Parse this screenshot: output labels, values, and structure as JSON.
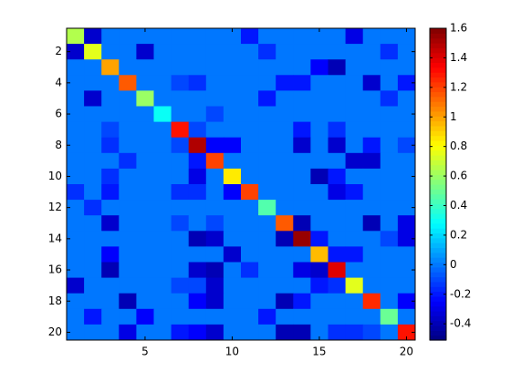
{
  "chart_data": {
    "type": "heatmap",
    "colormap": "jet",
    "xlim": [
      0.5,
      20.5
    ],
    "ylim": [
      0.5,
      20.5
    ],
    "xticks": [
      5,
      10,
      15,
      20
    ],
    "yticks": [
      2,
      4,
      6,
      8,
      10,
      12,
      14,
      16,
      18,
      20
    ],
    "clim": [
      -0.51,
      1.6
    ],
    "cticks": [
      -0.4,
      -0.2,
      0,
      0.2,
      0.4,
      0.6,
      0.8,
      1,
      1.2,
      1.4,
      1.6
    ],
    "values": [
      [
        0.65,
        -0.35,
        0,
        0,
        0,
        0,
        0,
        0,
        0,
        0,
        -0.2,
        0,
        0,
        0,
        0,
        0,
        -0.3,
        0,
        0,
        0
      ],
      [
        -0.35,
        0.75,
        0,
        0,
        -0.35,
        0,
        0,
        0,
        0,
        0,
        0,
        -0.15,
        0,
        0,
        0,
        0,
        0,
        0,
        -0.15,
        0
      ],
      [
        0,
        0,
        1.0,
        0,
        0,
        0,
        0,
        0,
        0,
        0,
        0,
        0,
        0,
        0,
        -0.25,
        -0.4,
        0,
        0,
        0,
        0
      ],
      [
        0,
        0,
        0,
        1.15,
        0,
        0,
        -0.1,
        -0.15,
        0,
        0,
        0,
        0,
        -0.2,
        -0.2,
        0,
        0,
        0,
        -0.35,
        0,
        -0.2
      ],
      [
        0,
        -0.35,
        0,
        0,
        0.6,
        0,
        0,
        0,
        0,
        0,
        0,
        -0.2,
        0,
        0,
        0,
        0,
        0,
        0,
        -0.15,
        0
      ],
      [
        0,
        0,
        0,
        0,
        0,
        0.3,
        0,
        0,
        -0.1,
        0,
        0,
        0,
        0,
        0,
        0,
        0,
        0,
        0,
        0,
        0
      ],
      [
        0,
        0,
        -0.1,
        0,
        0,
        0,
        1.3,
        -0.1,
        0,
        0,
        0,
        0,
        0,
        -0.2,
        0,
        -0.15,
        0,
        0,
        0,
        0
      ],
      [
        0,
        0,
        -0.15,
        0,
        0,
        0,
        -0.1,
        1.5,
        -0.25,
        -0.25,
        0,
        0,
        0,
        -0.35,
        0,
        -0.35,
        0,
        -0.2,
        0,
        -0.1
      ],
      [
        0,
        0,
        0,
        -0.15,
        0,
        0,
        0,
        -0.2,
        1.2,
        0,
        0,
        0,
        0,
        0,
        0,
        0,
        -0.35,
        -0.35,
        0,
        0
      ],
      [
        0,
        0,
        -0.15,
        0,
        0,
        0,
        0,
        -0.3,
        0,
        0.85,
        0,
        0,
        0,
        0,
        -0.4,
        -0.2,
        0,
        0,
        0,
        0
      ],
      [
        -0.15,
        0,
        -0.2,
        0,
        0,
        0,
        -0.15,
        -0.15,
        0,
        -0.25,
        1.2,
        0,
        0,
        0,
        0,
        -0.3,
        -0.2,
        0,
        0,
        0
      ],
      [
        0,
        -0.15,
        0,
        0,
        0,
        0,
        0,
        0,
        0,
        0,
        0,
        0.45,
        0,
        0,
        0,
        0,
        0,
        0,
        0,
        0
      ],
      [
        0,
        0,
        -0.35,
        0,
        0,
        0,
        -0.1,
        0,
        -0.1,
        0,
        0,
        0,
        1.15,
        -0.4,
        0,
        0,
        0,
        -0.4,
        0,
        -0.3
      ],
      [
        0,
        0,
        0,
        0,
        0,
        0,
        0,
        -0.4,
        -0.35,
        0,
        0,
        0,
        -0.4,
        1.55,
        -0.2,
        0,
        0,
        0,
        -0.1,
        -0.3
      ],
      [
        0,
        0,
        -0.25,
        0,
        0,
        0,
        0,
        0,
        0,
        -0.35,
        0,
        0,
        0,
        0,
        0.95,
        -0.2,
        -0.2,
        0,
        0,
        0
      ],
      [
        0,
        0,
        -0.4,
        0,
        0,
        0,
        0,
        -0.35,
        -0.4,
        0,
        -0.15,
        0,
        0,
        -0.3,
        -0.35,
        1.4,
        0,
        0,
        0,
        0
      ],
      [
        -0.35,
        0,
        0,
        0,
        0,
        0,
        -0.1,
        -0.1,
        -0.35,
        0,
        0,
        0,
        0,
        0,
        -0.2,
        -0.15,
        0.75,
        0,
        0,
        0
      ],
      [
        0,
        0,
        0,
        -0.4,
        0,
        0,
        0,
        -0.25,
        -0.35,
        0,
        0,
        0,
        -0.4,
        -0.2,
        0,
        0,
        0,
        1.25,
        0,
        -0.25
      ],
      [
        0,
        -0.2,
        0,
        0,
        -0.25,
        0,
        0,
        0,
        0,
        0,
        0,
        -0.2,
        0,
        0,
        0,
        0,
        0,
        0,
        0.5,
        0
      ],
      [
        0,
        0,
        0,
        -0.3,
        0,
        0,
        -0.2,
        -0.25,
        -0.35,
        0,
        0,
        0,
        -0.4,
        -0.4,
        0,
        -0.15,
        -0.15,
        -0.1,
        0,
        1.3
      ]
    ]
  }
}
